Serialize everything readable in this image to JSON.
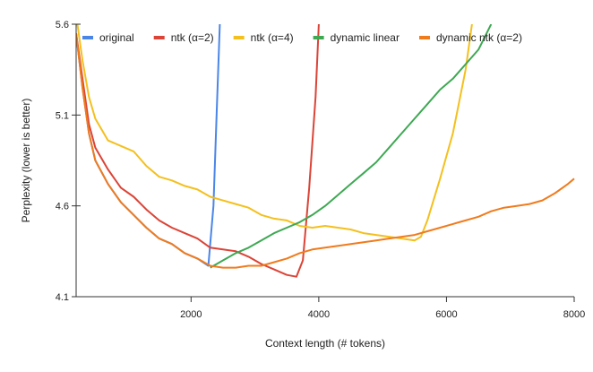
{
  "chart_data": {
    "type": "line",
    "title": "",
    "xlabel": "Context length (# tokens)",
    "ylabel": "Perplexity (lower is better)",
    "xlim": [
      200,
      8000
    ],
    "ylim": [
      4.1,
      5.6
    ],
    "xticks": [
      2000,
      4000,
      6000,
      8000
    ],
    "yticks": [
      4.1,
      4.6,
      5.1,
      5.6
    ],
    "ytick_labels": [
      "4.1",
      "4.6",
      "5.1",
      "5.6"
    ],
    "xtick_labels": [
      "2000",
      "4000",
      "6000",
      "8000"
    ],
    "grid": false,
    "legend_position": "top",
    "series": [
      {
        "name": "original",
        "color": "#4a86e8",
        "x": [
          200,
          300,
          400,
          500,
          700,
          900,
          1100,
          1300,
          1500,
          1700,
          1900,
          2100,
          2270,
          2350,
          2400,
          2450
        ],
        "y": [
          5.55,
          5.25,
          5.0,
          4.85,
          4.72,
          4.62,
          4.55,
          4.48,
          4.42,
          4.39,
          4.34,
          4.31,
          4.27,
          4.6,
          5.1,
          5.6
        ]
      },
      {
        "name": "ntk (α=2)",
        "color": "#db4437",
        "x": [
          200,
          300,
          400,
          500,
          700,
          900,
          1100,
          1300,
          1500,
          1700,
          1900,
          2100,
          2300,
          2500,
          2700,
          2900,
          3100,
          3300,
          3500,
          3650,
          3750,
          3850,
          3950,
          4000
        ],
        "y": [
          5.55,
          5.3,
          5.05,
          4.92,
          4.8,
          4.7,
          4.65,
          4.58,
          4.52,
          4.48,
          4.45,
          4.42,
          4.37,
          4.36,
          4.35,
          4.32,
          4.28,
          4.25,
          4.22,
          4.21,
          4.3,
          4.7,
          5.2,
          5.6
        ]
      },
      {
        "name": "ntk (α=4)",
        "color": "#f4c01e",
        "x": [
          200,
          300,
          400,
          500,
          700,
          900,
          1100,
          1300,
          1500,
          1700,
          1900,
          2100,
          2300,
          2500,
          2700,
          2900,
          3100,
          3300,
          3500,
          3700,
          3900,
          4100,
          4300,
          4500,
          4700,
          4900,
          5100,
          5300,
          5500,
          5600,
          5700,
          5900,
          6100,
          6300,
          6400
        ],
        "y": [
          5.65,
          5.4,
          5.2,
          5.08,
          4.96,
          4.93,
          4.9,
          4.82,
          4.76,
          4.74,
          4.71,
          4.69,
          4.65,
          4.63,
          4.61,
          4.59,
          4.55,
          4.53,
          4.52,
          4.49,
          4.48,
          4.49,
          4.48,
          4.47,
          4.45,
          4.44,
          4.43,
          4.42,
          4.41,
          4.43,
          4.52,
          4.75,
          5.0,
          5.35,
          5.6
        ]
      },
      {
        "name": "dynamic linear",
        "color": "#3ea853",
        "x": [
          2300,
          2500,
          2700,
          2900,
          3100,
          3300,
          3500,
          3700,
          3900,
          4100,
          4300,
          4500,
          4700,
          4900,
          5100,
          5300,
          5500,
          5700,
          5900,
          6100,
          6300,
          6500,
          6700
        ],
        "y": [
          4.26,
          4.3,
          4.34,
          4.37,
          4.41,
          4.45,
          4.48,
          4.51,
          4.55,
          4.6,
          4.66,
          4.72,
          4.78,
          4.84,
          4.92,
          5.0,
          5.08,
          5.16,
          5.24,
          5.3,
          5.38,
          5.46,
          5.6
        ]
      },
      {
        "name": "dynamic ntk (α=2)",
        "color": "#f07b1d",
        "x": [
          200,
          300,
          400,
          500,
          700,
          900,
          1100,
          1300,
          1500,
          1700,
          1900,
          2100,
          2300,
          2500,
          2700,
          2900,
          3100,
          3300,
          3500,
          3700,
          3900,
          4100,
          4300,
          4500,
          4700,
          4900,
          5100,
          5300,
          5500,
          5700,
          5900,
          6100,
          6300,
          6500,
          6700,
          6900,
          7100,
          7300,
          7500,
          7700,
          7900,
          8000
        ],
        "y": [
          5.55,
          5.25,
          5.0,
          4.85,
          4.72,
          4.62,
          4.55,
          4.48,
          4.42,
          4.39,
          4.34,
          4.31,
          4.27,
          4.26,
          4.26,
          4.27,
          4.27,
          4.29,
          4.31,
          4.34,
          4.36,
          4.37,
          4.38,
          4.39,
          4.4,
          4.41,
          4.42,
          4.43,
          4.44,
          4.46,
          4.48,
          4.5,
          4.52,
          4.54,
          4.57,
          4.59,
          4.6,
          4.61,
          4.63,
          4.67,
          4.72,
          4.75
        ]
      }
    ]
  }
}
